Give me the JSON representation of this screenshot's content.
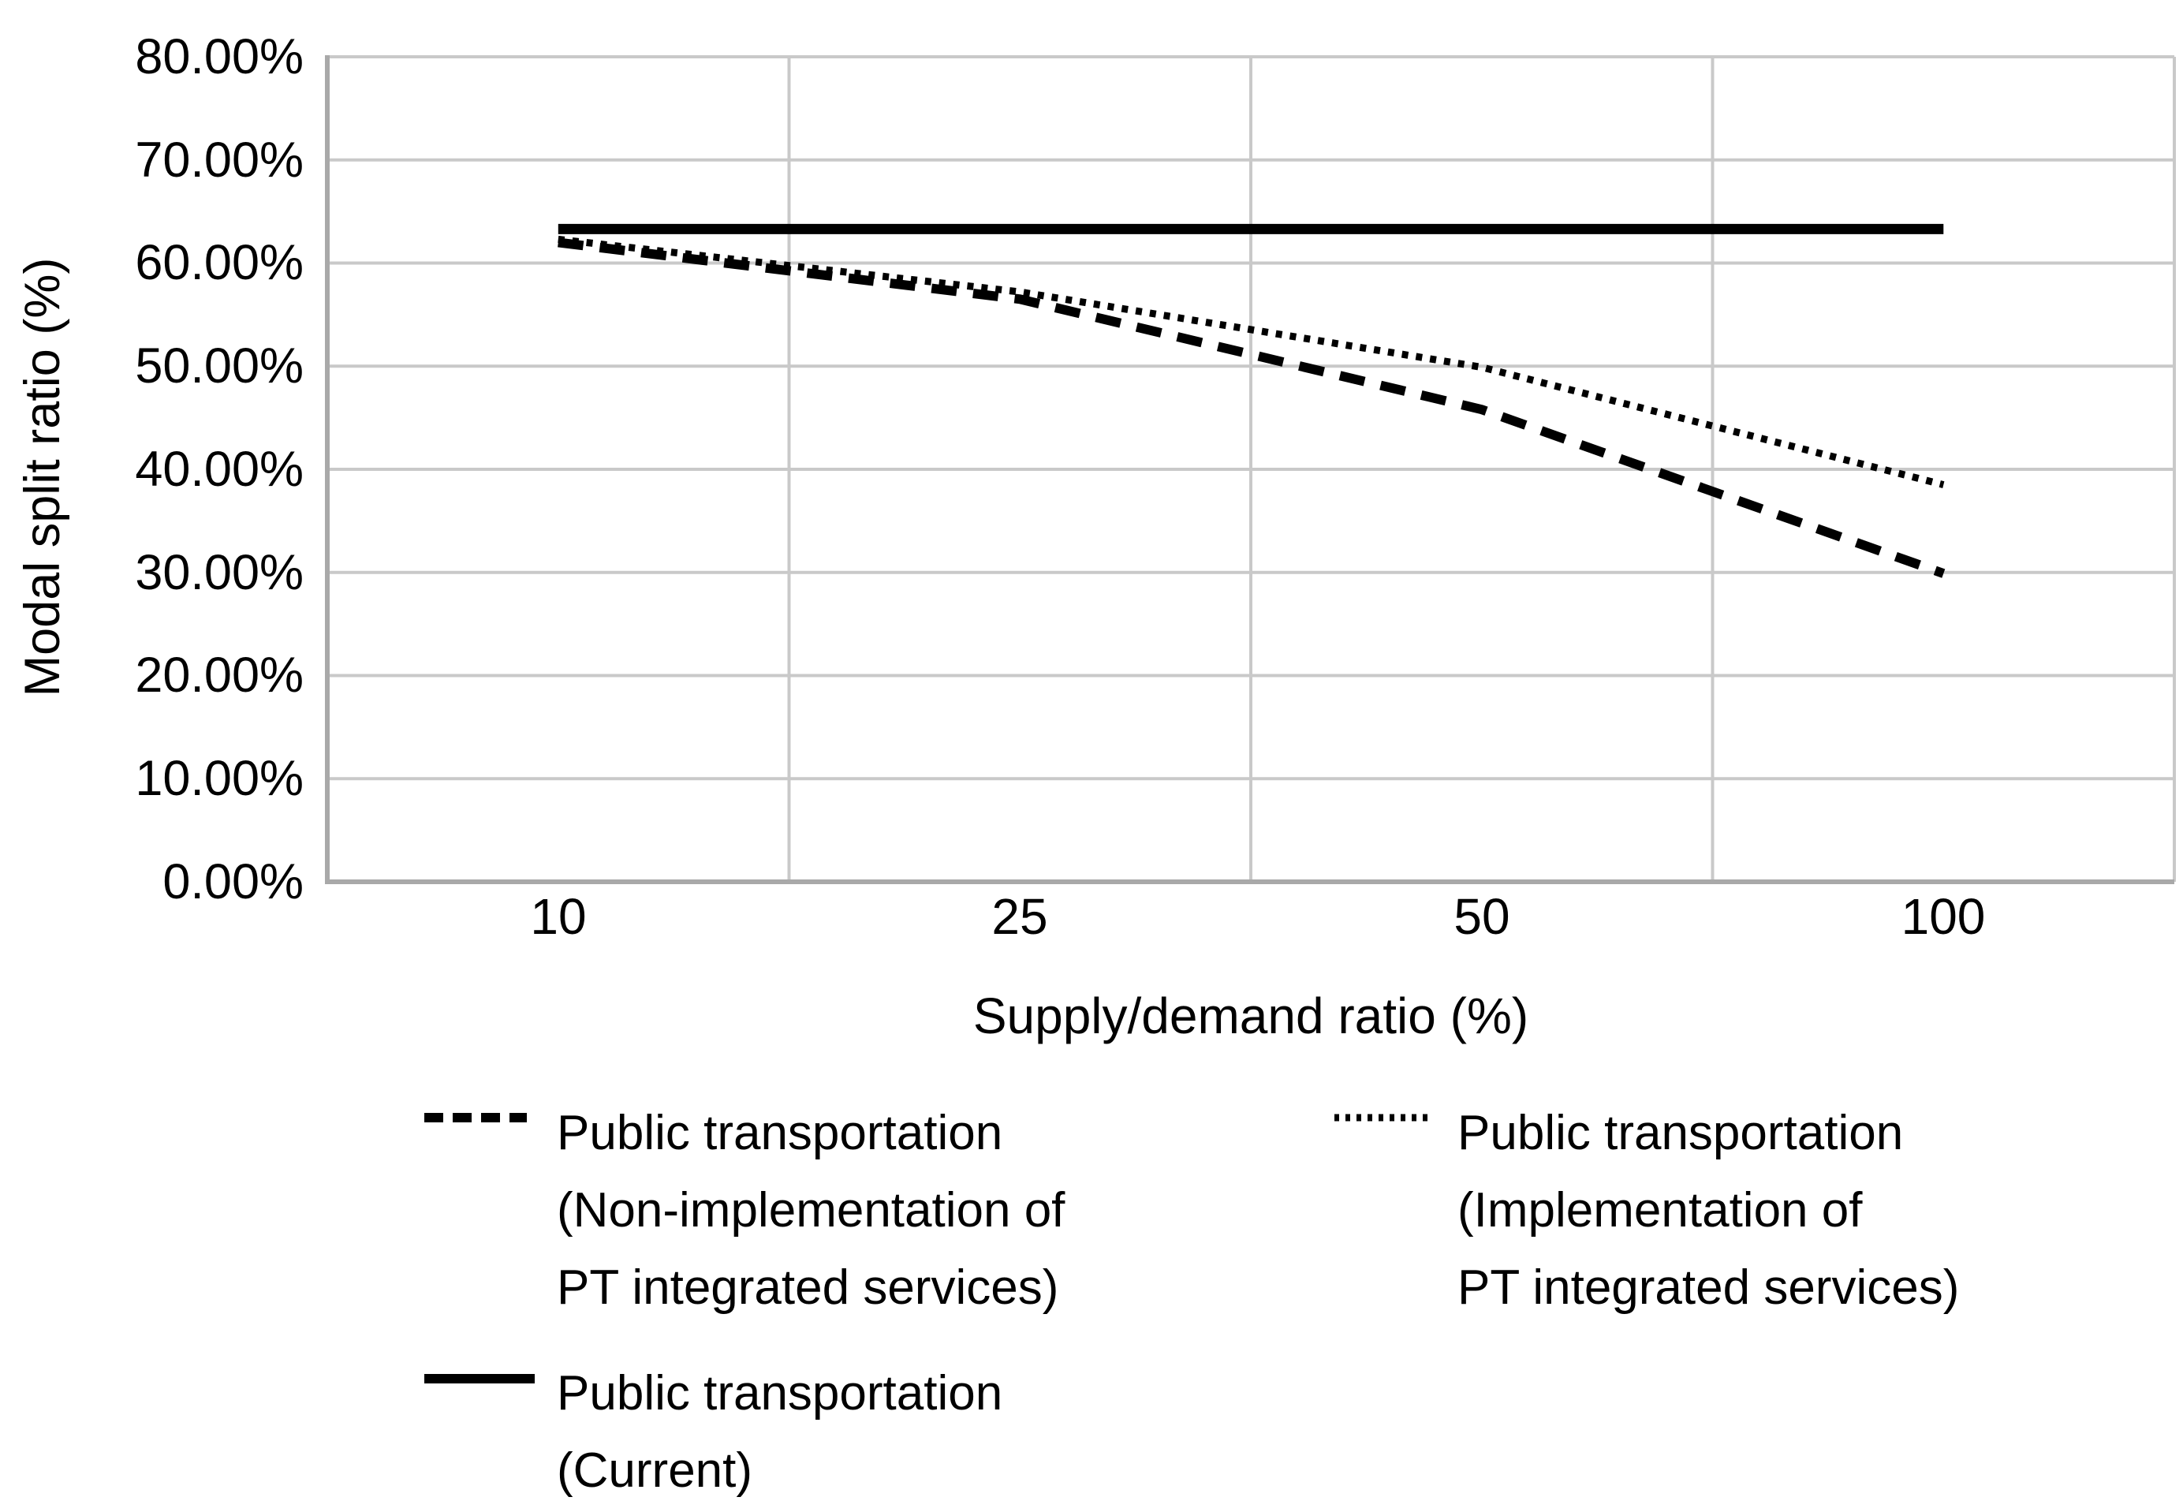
{
  "chart_data": {
    "type": "line",
    "title": "",
    "xlabel": "Supply/demand ratio (%)",
    "ylabel": "Modal split ratio (%)",
    "categories": [
      "10",
      "25",
      "50",
      "100"
    ],
    "series": [
      {
        "name": "Public transportation (Non-implementation of PT integrated services)",
        "style": "dashed",
        "color": "#000000",
        "values": [
          62.0,
          56.5,
          45.8,
          29.9
        ]
      },
      {
        "name": "Public transportation (Implementation of PT integrated services)",
        "style": "dotted",
        "color": "#000000",
        "values": [
          62.3,
          57.2,
          49.9,
          38.5
        ]
      },
      {
        "name": "Public transportation (Current)",
        "style": "solid",
        "color": "#000000",
        "values": [
          63.3,
          63.3,
          63.3,
          63.3
        ]
      }
    ],
    "ylim": [
      0,
      80
    ],
    "y_tick_step": 10,
    "y_tick_labels": [
      "0.00%",
      "10.00%",
      "20.00%",
      "30.00%",
      "40.00%",
      "50.00%",
      "60.00%",
      "70.00%",
      "80.00%"
    ],
    "grid": true,
    "gridline_color": "#c9c9c9",
    "axis_line_color": "#a9a9a9",
    "legend_position": "bottom"
  },
  "legend": {
    "entries": [
      {
        "style": "dashed",
        "lines": [
          "Public transportation",
          "(Non-implementation of",
          "PT integrated services)"
        ]
      },
      {
        "style": "dotted",
        "lines": [
          "Public transportation",
          "(Implementation of",
          "PT integrated services)"
        ]
      },
      {
        "style": "solid",
        "lines": [
          "Public transportation",
          "(Current)"
        ]
      }
    ]
  }
}
